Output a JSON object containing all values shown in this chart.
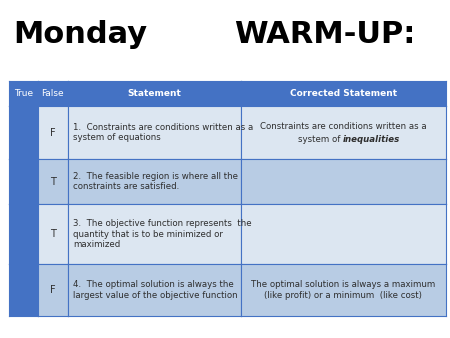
{
  "title_left": "Monday",
  "title_right": "WARM-UP:",
  "title_fontsize": 22,
  "title_color": "#000000",
  "bg_color": "#ffffff",
  "header_bg": "#4472c4",
  "header_text_color": "#ffffff",
  "header_labels": [
    "True",
    "False",
    "Statement",
    "Corrected Statement"
  ],
  "row_bg_even": "#dce6f1",
  "row_bg_odd": "#b8cce4",
  "side_col_bg": "#4472c4",
  "border_color": "#4472c4",
  "text_color": "#2e2e2e",
  "rows": [
    {
      "tf": "F",
      "statement": "1.  Constraints are conditions written as a\nsystem of equations",
      "corrected_plain": "Constraints are conditions written as a\nsystem of ",
      "corrected_italic": "inequalities",
      "corrected_after": ""
    },
    {
      "tf": "T",
      "statement": "2.  The feasible region is where all the\nconstraints are satisfied.",
      "corrected_plain": "",
      "corrected_italic": "",
      "corrected_after": ""
    },
    {
      "tf": "T",
      "statement": "3.  The objective function represents  the\nquantity that is to be minimized or\nmaximized",
      "corrected_plain": "",
      "corrected_italic": "",
      "corrected_after": ""
    },
    {
      "tf": "F",
      "statement": "4.  The optimal solution is always the\nlargest value of the objective function",
      "corrected_plain": "The optimal solution is always a maximum\n(like profit) or a minimum  (like cost)",
      "corrected_italic": "",
      "corrected_after": ""
    }
  ],
  "fig_w": 4.5,
  "fig_h": 3.38,
  "dpi": 100
}
